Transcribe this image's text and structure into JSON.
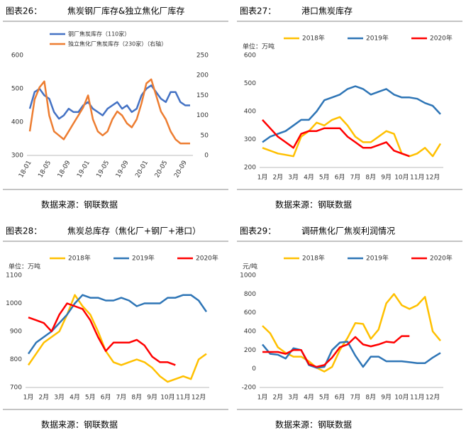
{
  "chart_data": [
    {
      "type": "line",
      "figure_label": "图表26：",
      "title": "焦炭钢厂库存&独立焦化厂库存",
      "source": "数据来源：钢联数据",
      "categories": [
        "18-01",
        null,
        null,
        null,
        "18-05",
        null,
        null,
        null,
        "18-09",
        null,
        null,
        null,
        "19-01",
        null,
        null,
        null,
        "19-05",
        null,
        null,
        null,
        "19-09",
        null,
        null,
        null,
        "20-01",
        null,
        null,
        null,
        "20-05",
        null,
        null,
        null,
        "20-09",
        null
      ],
      "series": [
        {
          "name": "钢厂焦炭库存（110家）",
          "color": "#4472c4",
          "values": [
            440,
            490,
            500,
            480,
            470,
            430,
            410,
            420,
            440,
            430,
            430,
            450,
            460,
            440,
            430,
            420,
            440,
            450,
            460,
            440,
            450,
            430,
            440,
            480,
            500,
            510,
            490,
            470,
            460,
            490,
            490,
            460,
            450,
            450
          ]
        },
        {
          "name": "独立焦化厂焦炭库存（230家）（右轴）",
          "color": "#ed7d31",
          "axis": "y2",
          "values": [
            60,
            140,
            170,
            185,
            100,
            60,
            50,
            40,
            60,
            80,
            100,
            120,
            150,
            90,
            60,
            50,
            60,
            90,
            110,
            100,
            80,
            70,
            90,
            130,
            180,
            190,
            150,
            110,
            90,
            60,
            40,
            30,
            30,
            30
          ]
        }
      ],
      "ylim": [
        300,
        600
      ],
      "yticks": [
        300,
        400,
        500,
        600
      ],
      "y2lim": [
        0,
        250
      ],
      "y2ticks": [
        0,
        50,
        100,
        150,
        200,
        250
      ]
    },
    {
      "type": "line",
      "figure_label": "图表27：",
      "title": "港口焦炭库存",
      "source": "数据来源：钢联数据",
      "unit": "单位：万吨",
      "categories": [
        "1月",
        null,
        "2月",
        null,
        "3月",
        null,
        "4月",
        null,
        "5月",
        null,
        "6月",
        null,
        "7月",
        null,
        "8月",
        null,
        "9月",
        null,
        "10月",
        null,
        "11月",
        null,
        "12月",
        null
      ],
      "series": [
        {
          "name": "2018年",
          "color": "#ffc000",
          "values": [
            270,
            260,
            250,
            245,
            240,
            310,
            330,
            360,
            350,
            370,
            380,
            350,
            310,
            290,
            290,
            310,
            330,
            320,
            250,
            240,
            250,
            270,
            240,
            285
          ]
        },
        {
          "name": "2019年",
          "color": "#2e75b6",
          "values": [
            290,
            310,
            320,
            330,
            350,
            370,
            370,
            400,
            440,
            450,
            460,
            480,
            490,
            480,
            460,
            470,
            480,
            460,
            450,
            450,
            445,
            430,
            420,
            390
          ]
        },
        {
          "name": "2020年",
          "color": "#ff0000",
          "values": [
            370,
            340,
            310,
            290,
            270,
            320,
            330,
            330,
            340,
            340,
            340,
            310,
            290,
            270,
            270,
            280,
            290,
            260,
            250,
            240,
            null,
            null,
            null,
            null
          ]
        }
      ],
      "ylim": [
        200,
        600
      ],
      "yticks": [
        200,
        300,
        400,
        500,
        600
      ]
    },
    {
      "type": "line",
      "figure_label": "图表28：",
      "title": "焦炭总库存（焦化厂+钢厂+港口）",
      "source": "数据来源：钢联数据",
      "unit": "单位：万吨",
      "categories": [
        "1月",
        null,
        "2月",
        null,
        "3月",
        null,
        "4月",
        null,
        "5月",
        null,
        "6月",
        null,
        "7月",
        null,
        "8月",
        null,
        "9月",
        null,
        "10月",
        null,
        "11月",
        null,
        "12月",
        null
      ],
      "series": [
        {
          "name": "2018年",
          "color": "#ffc000",
          "values": [
            780,
            820,
            860,
            880,
            900,
            960,
            1030,
            990,
            960,
            900,
            830,
            790,
            780,
            790,
            800,
            790,
            770,
            740,
            720,
            730,
            740,
            730,
            800,
            820
          ]
        },
        {
          "name": "2019年",
          "color": "#2e75b6",
          "values": [
            820,
            860,
            880,
            900,
            930,
            960,
            1000,
            1030,
            1020,
            1020,
            1010,
            1010,
            1020,
            1010,
            990,
            1000,
            1000,
            1000,
            1020,
            1020,
            1030,
            1030,
            1010,
            970
          ]
        },
        {
          "name": "2020年",
          "color": "#ff0000",
          "values": [
            950,
            940,
            930,
            900,
            960,
            1000,
            990,
            980,
            940,
            880,
            830,
            860,
            860,
            860,
            870,
            850,
            810,
            790,
            790,
            780,
            null,
            null,
            null,
            null
          ]
        }
      ],
      "ylim": [
        700,
        1100
      ],
      "yticks": [
        700,
        800,
        900,
        1000,
        1100
      ]
    },
    {
      "type": "line",
      "figure_label": "图表29：",
      "title": "调研焦化厂焦炭利润情况",
      "source": "数据来源：钢联数据",
      "unit": "元/吨",
      "categories": [
        "1月",
        null,
        "2月",
        null,
        "3月",
        null,
        "4月",
        null,
        "5月",
        null,
        "6月",
        null,
        "7月",
        null,
        "8月",
        null,
        "9月",
        null,
        "10月",
        null,
        "11月",
        null,
        "12月",
        null
      ],
      "series": [
        {
          "name": "2018年",
          "color": "#ffc000",
          "values": [
            460,
            380,
            230,
            170,
            130,
            130,
            80,
            10,
            -30,
            20,
            200,
            330,
            490,
            480,
            320,
            420,
            700,
            800,
            680,
            640,
            680,
            770,
            400,
            300
          ]
        },
        {
          "name": "2019年",
          "color": "#2e75b6",
          "values": [
            260,
            160,
            150,
            110,
            220,
            200,
            40,
            10,
            20,
            200,
            280,
            290,
            140,
            20,
            130,
            130,
            80,
            80,
            80,
            70,
            60,
            60,
            120,
            170
          ]
        },
        {
          "name": "2020年",
          "color": "#ff0000",
          "values": [
            180,
            180,
            180,
            160,
            200,
            200,
            50,
            20,
            40,
            120,
            230,
            260,
            340,
            260,
            240,
            260,
            290,
            280,
            350,
            350,
            null,
            null,
            null,
            null
          ]
        }
      ],
      "ylim": [
        -200,
        1000
      ],
      "yticks": [
        -200,
        0,
        200,
        400,
        600,
        800,
        1000
      ]
    }
  ]
}
